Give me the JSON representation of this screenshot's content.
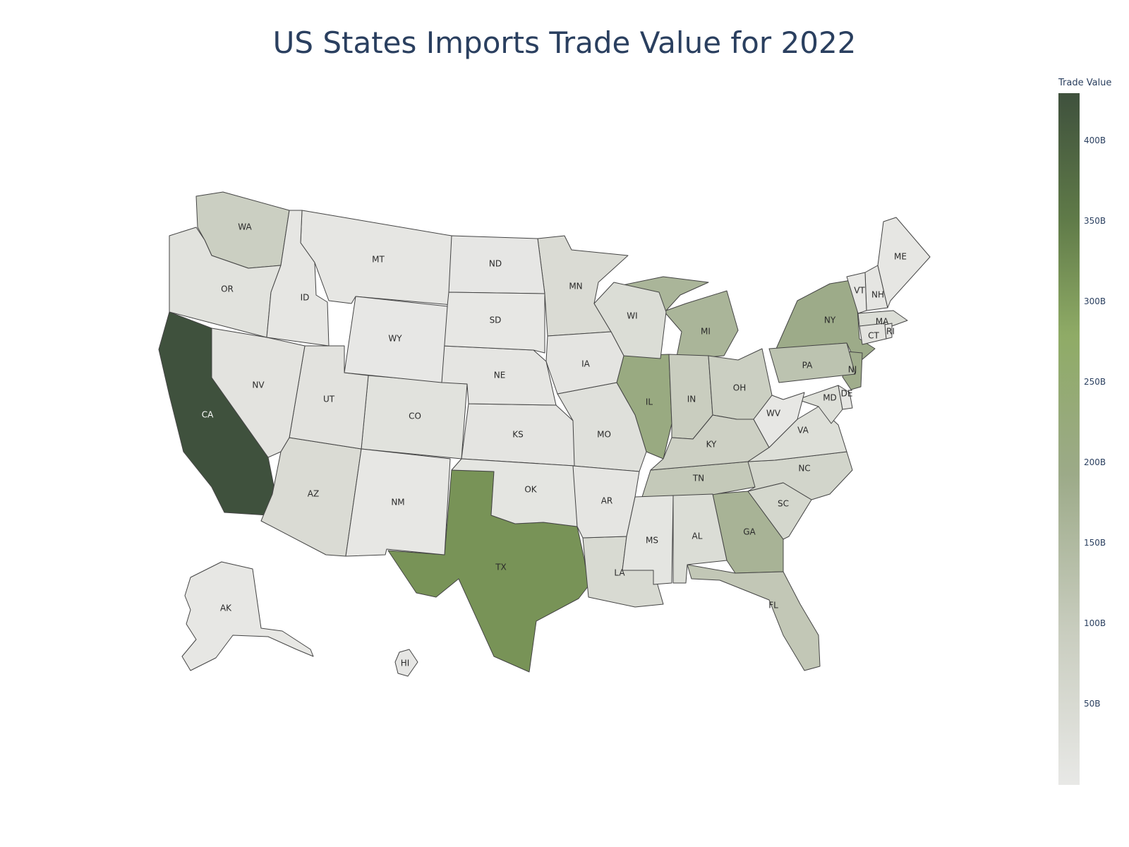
{
  "title": "US States Imports Trade Value for 2022",
  "colorbar": {
    "title": "Trade Value",
    "range": [
      0,
      430
    ],
    "ticks": [
      {
        "value": 50,
        "label": "50B"
      },
      {
        "value": 100,
        "label": "100B"
      },
      {
        "value": 150,
        "label": "150B"
      },
      {
        "value": 200,
        "label": "200B"
      },
      {
        "value": 250,
        "label": "250B"
      },
      {
        "value": 300,
        "label": "300B"
      },
      {
        "value": 350,
        "label": "350B"
      },
      {
        "value": 400,
        "label": "400B"
      }
    ],
    "colors": [
      "#e8e8e6",
      "#c9cdbf",
      "#9caa88",
      "#8fab66",
      "#5f7a48",
      "#3f513d"
    ]
  },
  "chart_data": {
    "type": "choropleth",
    "title": "US States Imports Trade Value for 2022",
    "colorbar_title": "Trade Value",
    "states": {
      "CA": 430,
      "TX": 300,
      "IL": 190,
      "NY": 170,
      "NJ": 165,
      "GA": 150,
      "MI": 145,
      "PA": 110,
      "FL": 100,
      "TN": 95,
      "IN": 85,
      "OH": 80,
      "WA": 80,
      "KY": 75,
      "NC": 60,
      "SC": 55,
      "MN": 40,
      "WI": 35,
      "AZ": 40,
      "LA": 45,
      "AL": 35,
      "VA": 30,
      "MA": 35,
      "MD": 30,
      "MO": 25,
      "CO": 20,
      "OR": 20,
      "UT": 18,
      "NV": 15,
      "CT": 15,
      "KS": 12,
      "IA": 12,
      "OK": 10,
      "NE": 8,
      "AR": 8,
      "MS": 10,
      "NH": 8,
      "DE": 8,
      "ME": 6,
      "VT": 4,
      "RI": 8,
      "MT": 6,
      "ID": 6,
      "ND": 5,
      "SD": 4,
      "WY": 2,
      "NM": 4,
      "WV": 4,
      "AK": 4,
      "HI": 5
    }
  }
}
